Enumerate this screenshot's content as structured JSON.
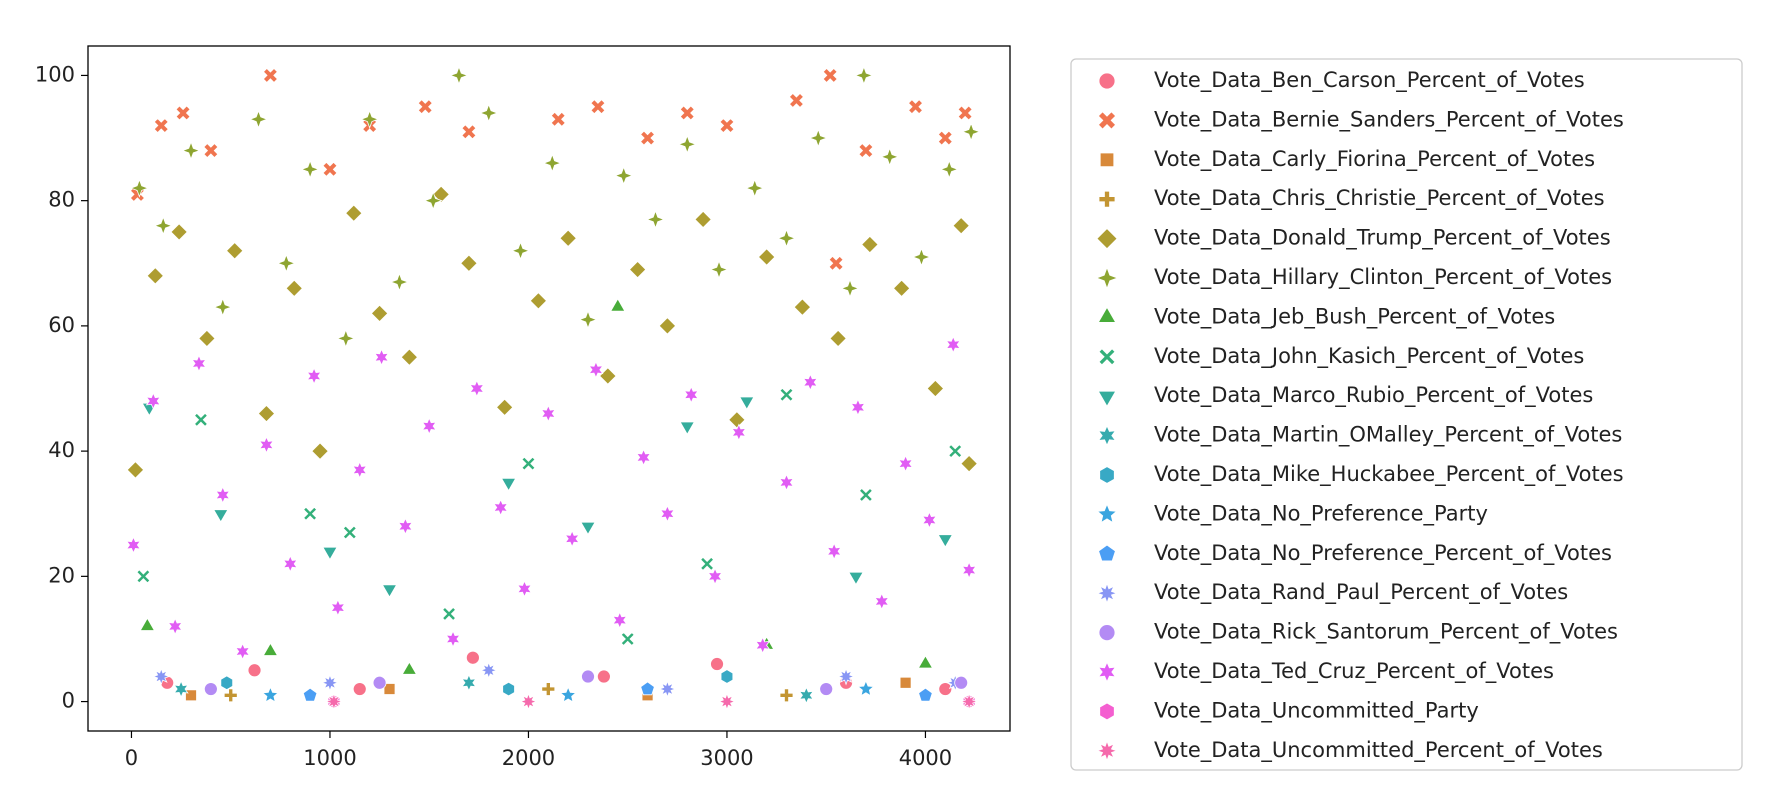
{
  "chart_data": {
    "type": "scatter",
    "xlim": [
      -219,
      4426
    ],
    "ylim": [
      -4.7,
      104.7
    ],
    "xticks": [
      0,
      1000,
      2000,
      3000,
      4000
    ],
    "yticks": [
      0,
      20,
      40,
      60,
      80,
      100
    ],
    "legend": "outside-right",
    "series": [
      {
        "name": "Vote_Data_Ben_Carson_Percent_of_Votes",
        "color": "#f77189",
        "marker": "circle",
        "x": [
          180,
          620,
          1150,
          1720,
          2380,
          2950,
          3600,
          4100
        ],
        "values": [
          3,
          5,
          2,
          7,
          4,
          6,
          3,
          2
        ]
      },
      {
        "name": "Vote_Data_Bernie_Sanders_Percent_of_Votes",
        "color": "#f0754f",
        "marker": "x",
        "x": [
          30,
          150,
          260,
          400,
          700,
          1000,
          1200,
          1480,
          1700,
          2150,
          2350,
          2600,
          2800,
          3000,
          3350,
          3520,
          3550,
          3700,
          3950,
          4100,
          4200
        ],
        "values": [
          81,
          92,
          94,
          88,
          100,
          85,
          92,
          95,
          91,
          93,
          95,
          90,
          94,
          92,
          96,
          100,
          70,
          88,
          95,
          90,
          94
        ]
      },
      {
        "name": "Vote_Data_Carly_Fiorina_Percent_of_Votes",
        "color": "#d8893a",
        "marker": "square",
        "x": [
          300,
          1300,
          2600,
          3900
        ],
        "values": [
          1,
          2,
          1,
          3
        ]
      },
      {
        "name": "Vote_Data_Chris_Christie_Percent_of_Votes",
        "color": "#c39532",
        "marker": "plus",
        "x": [
          500,
          2100,
          3300
        ],
        "values": [
          1,
          2,
          1
        ]
      },
      {
        "name": "Vote_Data_Donald_Trump_Percent_of_Votes",
        "color": "#ae9d31",
        "marker": "diamond",
        "x": [
          20,
          120,
          240,
          380,
          520,
          680,
          820,
          950,
          1120,
          1250,
          1400,
          1560,
          1700,
          1880,
          2050,
          2200,
          2400,
          2550,
          2700,
          2880,
          3050,
          3200,
          3380,
          3560,
          3720,
          3880,
          4050,
          4180,
          4220
        ],
        "values": [
          37,
          68,
          75,
          58,
          72,
          46,
          66,
          40,
          78,
          62,
          55,
          81,
          70,
          47,
          64,
          74,
          52,
          69,
          60,
          77,
          45,
          71,
          63,
          58,
          73,
          66,
          50,
          76,
          38
        ]
      },
      {
        "name": "Vote_Data_Hillary_Clinton_Percent_of_Votes",
        "color": "#8ea531",
        "marker": "star4",
        "x": [
          40,
          160,
          300,
          460,
          640,
          780,
          900,
          1080,
          1200,
          1350,
          1520,
          1650,
          1800,
          1960,
          2120,
          2300,
          2480,
          2640,
          2800,
          2960,
          3140,
          3300,
          3460,
          3620,
          3690,
          3820,
          3980,
          4120,
          4230
        ],
        "values": [
          82,
          76,
          88,
          63,
          93,
          70,
          85,
          58,
          93,
          67,
          80,
          100,
          94,
          72,
          86,
          61,
          84,
          77,
          89,
          69,
          82,
          74,
          90,
          66,
          100,
          87,
          71,
          85,
          91
        ]
      },
      {
        "name": "Vote_Data_Jeb_Bush_Percent_of_Votes",
        "color": "#48ac39",
        "marker": "triangle-up",
        "x": [
          80,
          700,
          1400,
          2450,
          3200,
          4000
        ],
        "values": [
          12,
          8,
          5,
          63,
          9,
          6
        ]
      },
      {
        "name": "Vote_Data_John_Kasich_Percent_of_Votes",
        "color": "#33b07a",
        "marker": "x-thin",
        "x": [
          60,
          350,
          900,
          1100,
          1600,
          2000,
          2500,
          2900,
          3300,
          3700,
          4150
        ],
        "values": [
          20,
          45,
          30,
          27,
          14,
          38,
          10,
          22,
          49,
          33,
          40
        ]
      },
      {
        "name": "Vote_Data_Marco_Rubio_Percent_of_Votes",
        "color": "#35ad9c",
        "marker": "triangle-down",
        "x": [
          90,
          450,
          1000,
          1300,
          1900,
          2300,
          2800,
          3100,
          3650,
          4100
        ],
        "values": [
          47,
          30,
          24,
          18,
          35,
          28,
          44,
          48,
          20,
          26
        ]
      },
      {
        "name": "Vote_Data_Martin_OMalley_Percent_of_Votes",
        "color": "#36abae",
        "marker": "star6",
        "x": [
          250,
          1700,
          3400
        ],
        "values": [
          2,
          3,
          1
        ]
      },
      {
        "name": "Vote_Data_Mike_Huckabee_Percent_of_Votes",
        "color": "#38a9c5",
        "marker": "hexagon",
        "x": [
          480,
          1900,
          3000
        ],
        "values": [
          3,
          2,
          4
        ]
      },
      {
        "name": "Vote_Data_No_Preference_Party",
        "color": "#3aa5df",
        "marker": "star5",
        "x": [
          700,
          2200,
          3700
        ],
        "values": [
          1,
          1,
          2
        ]
      },
      {
        "name": "Vote_Data_No_Preference_Percent_of_Votes",
        "color": "#4b9ef4",
        "marker": "pentagon",
        "x": [
          900,
          2600,
          4000
        ],
        "values": [
          1,
          2,
          1
        ]
      },
      {
        "name": "Vote_Data_Rand_Paul_Percent_of_Votes",
        "color": "#8896f4",
        "marker": "star8",
        "x": [
          150,
          1000,
          1800,
          2700,
          3600,
          4150
        ],
        "values": [
          4,
          3,
          5,
          2,
          4,
          3
        ]
      },
      {
        "name": "Vote_Data_Rick_Santorum_Percent_of_Votes",
        "color": "#b38bf4",
        "marker": "circle",
        "x": [
          400,
          1250,
          2300,
          3500,
          4180
        ],
        "values": [
          2,
          3,
          4,
          2,
          3
        ]
      },
      {
        "name": "Vote_Data_Ted_Cruz_Percent_of_Votes",
        "color": "#e15cf4",
        "marker": "star6",
        "x": [
          10,
          110,
          220,
          340,
          460,
          560,
          680,
          800,
          920,
          1040,
          1150,
          1260,
          1380,
          1500,
          1620,
          1740,
          1860,
          1980,
          2100,
          2220,
          2340,
          2460,
          2580,
          2700,
          2820,
          2940,
          3060,
          3180,
          3300,
          3420,
          3540,
          3660,
          3780,
          3900,
          4020,
          4140,
          4220
        ],
        "values": [
          25,
          48,
          12,
          54,
          33,
          8,
          41,
          22,
          52,
          15,
          37,
          55,
          28,
          44,
          10,
          50,
          31,
          18,
          46,
          26,
          53,
          13,
          39,
          30,
          49,
          20,
          43,
          9,
          35,
          51,
          24,
          47,
          16,
          38,
          29,
          57,
          21
        ]
      },
      {
        "name": "Vote_Data_Uncommitted_Party",
        "color": "#f45fd0",
        "marker": "hexagon",
        "x": [
          1020,
          4220
        ],
        "values": [
          0,
          0
        ]
      },
      {
        "name": "Vote_Data_Uncommitted_Percent_of_Votes",
        "color": "#f56aac",
        "marker": "star8",
        "x": [
          1020,
          2000,
          3000,
          4220
        ],
        "values": [
          0,
          0,
          0,
          0
        ]
      }
    ]
  }
}
